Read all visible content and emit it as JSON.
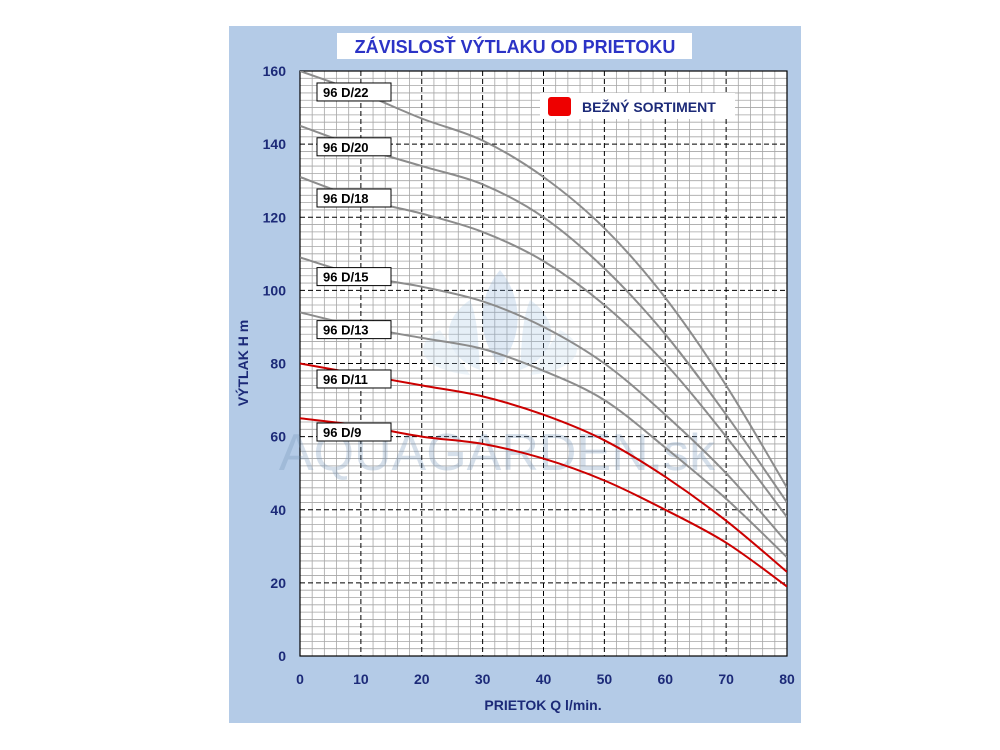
{
  "chart_data": {
    "type": "line",
    "title": "ZÁVISLOSŤ  VÝTLAKU  OD  PRIETOKU",
    "xlabel": "PRIETOK  Q  l/min.",
    "ylabel": "VÝTLAK  H  m",
    "xlim": [
      0,
      80
    ],
    "ylim": [
      0,
      160
    ],
    "x_ticks": [
      0,
      10,
      20,
      30,
      40,
      50,
      60,
      70,
      80
    ],
    "y_ticks": [
      0,
      20,
      40,
      60,
      80,
      100,
      120,
      140,
      160
    ],
    "grid": true,
    "watermark": "AQUAGARDEN.sk",
    "legend": {
      "position": "top-right",
      "entries": [
        {
          "label": "BEŽNÝ SORTIMENT",
          "color": "#ee0000"
        }
      ]
    },
    "colors": {
      "background": "#b4cbe7",
      "plot_background": "#ffffff",
      "grid_minor": "#a6a6a6",
      "grid_major": "#000000",
      "standard_series": "#cc0000",
      "other_series": "#8c8c8c",
      "axis_text": "#1c2a78",
      "title_text": "#2b33c6",
      "title_box": "#ffffff"
    },
    "series": [
      {
        "name": "96 D/22",
        "standard": false,
        "x": [
          0,
          10,
          20,
          30,
          40,
          50,
          60,
          70,
          80
        ],
        "y": [
          160,
          154,
          147,
          141,
          131,
          117,
          98,
          74,
          46
        ]
      },
      {
        "name": "96 D/20",
        "standard": false,
        "x": [
          0,
          10,
          20,
          30,
          40,
          50,
          60,
          70,
          80
        ],
        "y": [
          145,
          139,
          134,
          129,
          120,
          106,
          88,
          66,
          42
        ]
      },
      {
        "name": "96 D/18",
        "standard": false,
        "x": [
          0,
          10,
          20,
          30,
          40,
          50,
          60,
          70,
          80
        ],
        "y": [
          131,
          125,
          121,
          116,
          108,
          96,
          80,
          60,
          38
        ]
      },
      {
        "name": "96 D/15",
        "standard": false,
        "x": [
          0,
          10,
          20,
          30,
          40,
          50,
          60,
          70,
          80
        ],
        "y": [
          109,
          104,
          101,
          97,
          90,
          80,
          66,
          50,
          31
        ]
      },
      {
        "name": "96 D/13",
        "standard": false,
        "x": [
          0,
          10,
          20,
          30,
          40,
          50,
          60,
          70,
          80
        ],
        "y": [
          94,
          90,
          87,
          84,
          78,
          70,
          57,
          43,
          27
        ]
      },
      {
        "name": "96 D/11",
        "standard": true,
        "x": [
          0,
          10,
          20,
          30,
          40,
          50,
          60,
          70,
          80
        ],
        "y": [
          80,
          77,
          74,
          71,
          66,
          59,
          49,
          37,
          23
        ]
      },
      {
        "name": "96 D/9",
        "standard": true,
        "x": [
          0,
          10,
          20,
          30,
          40,
          50,
          60,
          70,
          80
        ],
        "y": [
          65,
          63,
          60,
          58,
          54,
          48,
          40,
          31,
          19
        ]
      }
    ]
  }
}
